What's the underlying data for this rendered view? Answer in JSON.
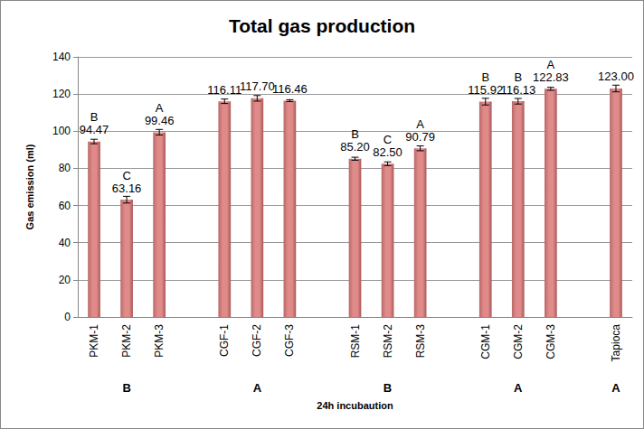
{
  "chart_data": {
    "type": "bar",
    "title": "Total gas production",
    "x_label": "24h incubaution",
    "y_label": "Gas emission (ml)",
    "categories": [
      "PKM-1",
      "PKM-2",
      "PKM-3",
      null,
      "CGF-1",
      "CGF-2",
      "CGF-3",
      null,
      "RSM-1",
      "RSM-2",
      "RSM-3",
      null,
      "CGM-1",
      "CGM-2",
      "CGM-3",
      null,
      "Tapioca"
    ],
    "values": [
      94.47,
      63.16,
      99.46,
      null,
      116.11,
      117.7,
      116.46,
      null,
      85.2,
      82.5,
      90.79,
      null,
      115.92,
      116.13,
      122.83,
      null,
      123.0
    ],
    "value_labels": [
      "94.47",
      "63.16",
      "99.46",
      null,
      "116.11",
      "117.70",
      "116.46",
      null,
      "85.20",
      "82.50",
      "90.79",
      null,
      "115.92",
      "116.13",
      "122.83",
      null,
      "123.00"
    ],
    "errors": [
      1.2,
      1.8,
      1.5,
      null,
      1.2,
      1.5,
      0.5,
      null,
      0.8,
      1.0,
      1.3,
      null,
      1.8,
      1.5,
      0.8,
      null,
      1.8
    ],
    "significance": [
      "B",
      "C",
      "A",
      null,
      null,
      null,
      null,
      null,
      "B",
      "C",
      "A",
      null,
      "B",
      "B",
      "A",
      null,
      null
    ],
    "group_letters": [
      null,
      "B",
      null,
      null,
      null,
      "A",
      null,
      null,
      null,
      "B",
      null,
      null,
      null,
      "A",
      null,
      null,
      "A"
    ],
    "color": "#e08a8a",
    "ylim": [
      0,
      140
    ],
    "yticks": [
      0,
      20,
      40,
      60,
      80,
      100,
      120,
      140
    ],
    "grid": true,
    "data_labels": true
  }
}
